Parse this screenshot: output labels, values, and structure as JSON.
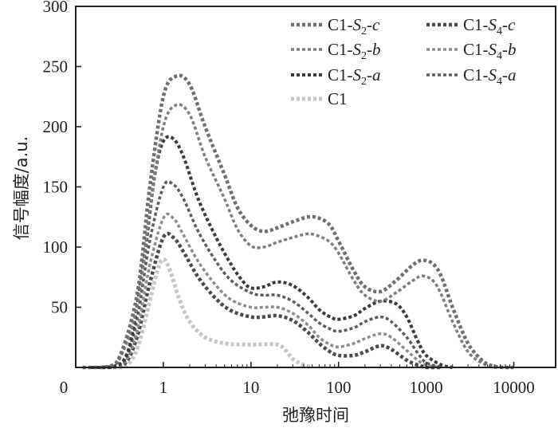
{
  "chart_data": {
    "type": "line",
    "xlabel": "弛豫时间",
    "ylabel": "信号幅度/a.u.",
    "x_scale": "log",
    "x_tick_labels": [
      "0",
      "1",
      "10",
      "100",
      "1000",
      "10000"
    ],
    "y_ticks": [
      50,
      100,
      150,
      200,
      250,
      300
    ],
    "ylim": [
      0,
      300
    ],
    "xlim": [
      0.1,
      30000
    ],
    "grid": false,
    "legend_position": "top-right",
    "series": [
      {
        "name": "C1-S2-c",
        "legend": {
          "base": "C1-",
          "var": "S",
          "sub": "2",
          "suffix": "-c"
        },
        "color": "#6e6e6e",
        "width": 4.5,
        "x": [
          0.12,
          0.2,
          0.3,
          0.5,
          0.7,
          1.0,
          1.4,
          2.0,
          3.0,
          5.0,
          7.0,
          10,
          14,
          20,
          30,
          45,
          60,
          80,
          100,
          150,
          200,
          300,
          450,
          700,
          900,
          1200,
          1500,
          2000,
          3000,
          4500,
          6000,
          8000,
          10000
        ],
        "y": [
          0,
          0,
          5,
          60,
          150,
          225,
          242,
          235,
          200,
          160,
          133,
          118,
          113,
          116,
          121,
          125,
          124,
          118,
          105,
          80,
          67,
          63,
          72,
          85,
          89,
          86,
          75,
          50,
          20,
          5,
          1,
          0,
          0
        ]
      },
      {
        "name": "C1-S2-b",
        "legend": {
          "base": "C1-",
          "var": "S",
          "sub": "2",
          "suffix": "-b"
        },
        "color": "#7d7d7d",
        "width": 3.5,
        "x": [
          0.12,
          0.2,
          0.3,
          0.5,
          0.7,
          1.0,
          1.4,
          2.0,
          3.0,
          5.0,
          7.0,
          10,
          14,
          20,
          30,
          45,
          60,
          80,
          100,
          150,
          200,
          300,
          450,
          700,
          900,
          1200,
          1500,
          2000,
          3000,
          4500,
          6000,
          8000,
          10000
        ],
        "y": [
          0,
          0,
          4,
          50,
          130,
          200,
          218,
          210,
          175,
          140,
          115,
          101,
          100,
          104,
          108,
          111,
          109,
          104,
          95,
          72,
          60,
          55,
          62,
          72,
          76,
          72,
          60,
          38,
          13,
          3,
          0,
          0,
          0
        ]
      },
      {
        "name": "C1-S2-a",
        "legend": {
          "base": "C1-",
          "var": "S",
          "sub": "2",
          "suffix": "-a"
        },
        "color": "#3a3a3a",
        "width": 4,
        "x": [
          0.15,
          0.25,
          0.4,
          0.6,
          0.8,
          1.0,
          1.3,
          1.7,
          2.5,
          4,
          6,
          8,
          10,
          14,
          20,
          30,
          45,
          60,
          80,
          100,
          150,
          200,
          300,
          450,
          600,
          800,
          1000,
          1500,
          2000
        ],
        "y": [
          0,
          0,
          15,
          90,
          160,
          188,
          190,
          175,
          140,
          108,
          85,
          72,
          66,
          67,
          71,
          68,
          58,
          48,
          42,
          40,
          43,
          49,
          55,
          53,
          42,
          22,
          10,
          2,
          0
        ]
      },
      {
        "name": "C1",
        "legend": {
          "base": "C1",
          "var": "",
          "sub": "",
          "suffix": ""
        },
        "color": "#c6c6c6",
        "width": 5,
        "x": [
          0.2,
          0.35,
          0.5,
          0.7,
          0.85,
          1.0,
          1.2,
          1.5,
          2.0,
          3.0,
          5.0,
          8.0,
          12,
          20,
          25,
          30,
          40,
          50
        ],
        "y": [
          0,
          0,
          15,
          55,
          80,
          90,
          80,
          58,
          38,
          25,
          20,
          19,
          19,
          19,
          14,
          7,
          2,
          0
        ]
      },
      {
        "name": "C1-S4-c",
        "legend": {
          "base": "C1-",
          "var": "S",
          "sub": "4",
          "suffix": "-c"
        },
        "color": "#4a4a4a",
        "width": 4.5,
        "x": [
          0.2,
          0.35,
          0.5,
          0.7,
          1.0,
          1.3,
          1.7,
          2.5,
          4,
          6,
          10,
          14,
          20,
          30,
          45,
          60,
          80,
          100,
          150,
          200,
          300,
          400,
          600,
          800,
          1000,
          1500
        ],
        "y": [
          0,
          2,
          25,
          70,
          108,
          108,
          96,
          75,
          57,
          47,
          42,
          42,
          43,
          39,
          29,
          20,
          13,
          10,
          10,
          13,
          18,
          15,
          6,
          2,
          0,
          0
        ]
      },
      {
        "name": "C1-S4-b",
        "legend": {
          "base": "C1-",
          "var": "S",
          "sub": "4",
          "suffix": "-b"
        },
        "color": "#8c8c8c",
        "width": 3.5,
        "x": [
          0.2,
          0.35,
          0.5,
          0.7,
          1.0,
          1.3,
          1.7,
          2.5,
          4,
          6,
          10,
          14,
          20,
          30,
          45,
          60,
          80,
          100,
          150,
          200,
          300,
          400,
          600,
          800,
          1000,
          1500
        ],
        "y": [
          0,
          3,
          30,
          85,
          124,
          124,
          110,
          88,
          68,
          56,
          50,
          50,
          50,
          45,
          35,
          25,
          19,
          17,
          20,
          24,
          28,
          25,
          14,
          6,
          2,
          0
        ]
      },
      {
        "name": "C1-S4-a",
        "legend": {
          "base": "C1-",
          "var": "S",
          "sub": "4",
          "suffix": "-a"
        },
        "color": "#5c5c5c",
        "width": 3.5,
        "x": [
          0.2,
          0.35,
          0.5,
          0.7,
          1.0,
          1.3,
          1.7,
          2.5,
          4,
          6,
          10,
          14,
          20,
          30,
          45,
          60,
          80,
          100,
          150,
          200,
          300,
          400,
          600,
          800,
          1000,
          1500
        ],
        "y": [
          0,
          4,
          40,
          105,
          150,
          152,
          140,
          113,
          88,
          72,
          62,
          60,
          60,
          55,
          45,
          37,
          32,
          30,
          33,
          38,
          42,
          38,
          25,
          12,
          4,
          0
        ]
      }
    ]
  }
}
